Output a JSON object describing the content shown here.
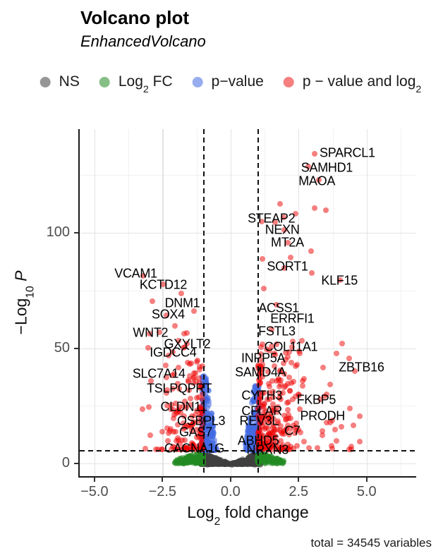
{
  "title": "Volcano plot",
  "subtitle": "EnhancedVolcano",
  "caption": "total = 34545 variables",
  "legend": {
    "items": [
      {
        "pre": "NS",
        "sub": "",
        "post": "",
        "color": "rgba(64,64,64,0.55)"
      },
      {
        "pre": "Log",
        "sub": "2",
        "post": " FC",
        "color": "rgba(34,139,34,0.55)"
      },
      {
        "pre": "p−value",
        "sub": "",
        "post": "",
        "color": "rgba(65,105,225,0.55)"
      },
      {
        "pre": "p − value and log",
        "sub": "2",
        "post": "",
        "color": "rgba(238,0,0,0.5)"
      }
    ]
  },
  "chart_data": {
    "type": "scatter",
    "title": "Volcano plot",
    "subtitle": "EnhancedVolcano",
    "xlabel_parts": {
      "pre": "Log",
      "sub": "2",
      "post": " fold change"
    },
    "ylabel_parts": {
      "pre": "−Log",
      "sub": "10",
      "post": " ",
      "post_italic": "P"
    },
    "xlim": [
      -5.54,
      6.82
    ],
    "ylim": [
      -5.5,
      145
    ],
    "x_ticks": [
      {
        "v": -5.0,
        "label": "−5.0"
      },
      {
        "v": -2.5,
        "label": "−2.5"
      },
      {
        "v": 0.0,
        "label": "0.0"
      },
      {
        "v": 2.5,
        "label": "2.5"
      },
      {
        "v": 5.0,
        "label": "5.0"
      }
    ],
    "y_ticks": [
      {
        "v": 0,
        "label": "0"
      },
      {
        "v": 50,
        "label": "50"
      },
      {
        "v": 100,
        "label": "100"
      }
    ],
    "x_minor": [
      -3.75,
      -1.25,
      1.25,
      3.75,
      6.25
    ],
    "y_minor": [
      25,
      75,
      125
    ],
    "grid": true,
    "legend_position": "top",
    "fc_cutoffs": [
      -1,
      1
    ],
    "p_cutoff_neglog10": 5.8,
    "colors": {
      "ns": "rgba(64,64,64,0.55)",
      "fc": "rgba(34,139,34,0.55)",
      "p": "rgba(65,105,225,0.55)",
      "both": "rgba(238,0,0,0.5)"
    },
    "labeled_genes": [
      {
        "gene": "SPARCL1",
        "x": 4.29,
        "y": 134.6
      },
      {
        "gene": "SAMHD1",
        "x": 3.54,
        "y": 128.1
      },
      {
        "gene": "MAOA",
        "x": 3.17,
        "y": 122.3
      },
      {
        "gene": "STEAP2",
        "x": 1.5,
        "y": 106.1
      },
      {
        "gene": "NEXN",
        "x": 1.9,
        "y": 101.2
      },
      {
        "gene": "MT2A",
        "x": 2.09,
        "y": 95.7
      },
      {
        "gene": "SORT1",
        "x": 2.09,
        "y": 85.3
      },
      {
        "gene": "KLF15",
        "x": 4.0,
        "y": 79.2
      },
      {
        "gene": "VCAM1",
        "x": -3.48,
        "y": 82.3
      },
      {
        "gene": "KCTD12",
        "x": -2.47,
        "y": 77.4
      },
      {
        "gene": "DNM1",
        "x": -1.77,
        "y": 69.4
      },
      {
        "gene": "SOX4",
        "x": -2.29,
        "y": 64.5
      },
      {
        "gene": "WNT2",
        "x": -2.94,
        "y": 56.6
      },
      {
        "gene": "GXYLT2",
        "x": -1.59,
        "y": 51.7
      },
      {
        "gene": "IGDCC4",
        "x": -2.11,
        "y": 48.0
      },
      {
        "gene": "SLC7A14",
        "x": -2.63,
        "y": 38.8
      },
      {
        "gene": "TSLPQPRT",
        "x": -1.88,
        "y": 32.4
      },
      {
        "gene": "CLDN11",
        "x": -1.72,
        "y": 24.5
      },
      {
        "gene": "OSBPL3",
        "x": -1.08,
        "y": 18.3
      },
      {
        "gene": "GAS7",
        "x": -1.28,
        "y": 13.5
      },
      {
        "gene": "CACNA1G",
        "x": -1.33,
        "y": 6.4
      },
      {
        "gene": "ACSS1",
        "x": 1.77,
        "y": 67.3
      },
      {
        "gene": "ERRFI1",
        "x": 2.27,
        "y": 62.7
      },
      {
        "gene": "FSTL3",
        "x": 1.7,
        "y": 57.2
      },
      {
        "gene": "COL11A1",
        "x": 2.22,
        "y": 50.5
      },
      {
        "gene": "INPP5A",
        "x": 1.2,
        "y": 45.6
      },
      {
        "gene": "SAMD4A",
        "x": 1.1,
        "y": 39.4
      },
      {
        "gene": "ZBTB16",
        "x": 4.81,
        "y": 41.6
      },
      {
        "gene": "CYTH3",
        "x": 1.15,
        "y": 29.4
      },
      {
        "gene": "FKBP5",
        "x": 3.15,
        "y": 27.5
      },
      {
        "gene": "CFLAR",
        "x": 1.15,
        "y": 22.6
      },
      {
        "gene": "PRODH",
        "x": 3.38,
        "y": 20.5
      },
      {
        "gene": "REV3L",
        "x": 1.05,
        "y": 18.3
      },
      {
        "gene": "C7",
        "x": 2.27,
        "y": 14.1
      },
      {
        "gene": "ABHD5",
        "x": 1.02,
        "y": 9.8
      },
      {
        "gene": "NRXN3",
        "x": 1.36,
        "y": 5.8
      }
    ],
    "highlight_points": [
      [
        3.09,
        134.3
      ],
      [
        2.86,
        128.7
      ],
      [
        3.25,
        123.0
      ],
      [
        3.5,
        109.8
      ],
      [
        1.95,
        106.7
      ],
      [
        1.97,
        101.4
      ],
      [
        2.1,
        95.9
      ],
      [
        2.2,
        89.3
      ],
      [
        2.99,
        82.6
      ],
      [
        4.03,
        79.4
      ],
      [
        -3.2,
        81.5
      ],
      [
        -2.47,
        77.6
      ],
      [
        -2.86,
        70.3
      ],
      [
        -1.82,
        73.7
      ],
      [
        -2.35,
        64.3
      ],
      [
        -2.62,
        56.8
      ],
      [
        -1.61,
        51.9
      ],
      [
        -2.13,
        48.3
      ],
      [
        -1.35,
        37.3
      ],
      [
        3.9,
        47.7
      ],
      [
        4.75,
        20.5
      ],
      [
        3.3,
        27.8
      ],
      [
        2.42,
        14.5
      ]
    ],
    "point_cloud": {
      "seed": 20,
      "dot_size": 8,
      "components": [
        {
          "kind": "volcano_core",
          "color": "ns",
          "n": 750,
          "xmax": 1.12,
          "pcut": 5.8
        },
        {
          "kind": "skirt",
          "color": "fc",
          "n": 140,
          "side": -1,
          "x0": 1.0,
          "x1": 2.1,
          "pmax": 5.6
        },
        {
          "kind": "skirt",
          "color": "fc",
          "n": 120,
          "side": 1,
          "x0": 1.0,
          "x1": 1.95,
          "pmax": 5.6
        },
        {
          "kind": "wedge",
          "color": "p",
          "n": 240,
          "side": -1,
          "edge": 1.05,
          "width": 0.5,
          "p0": 5.8,
          "p1": 38
        },
        {
          "kind": "wedge",
          "color": "p",
          "n": 240,
          "side": 1,
          "edge": 1.05,
          "width": 0.5,
          "p0": 5.8,
          "p1": 34
        },
        {
          "kind": "column",
          "color": "both",
          "n": 130,
          "side": -1,
          "x0": 1.02,
          "spread": 1.35,
          "xpow": 1.7,
          "p0": 6,
          "p1": 44,
          "ppow": 2.0
        },
        {
          "kind": "column",
          "color": "both",
          "n": 35,
          "side": -1,
          "x0": 1.05,
          "spread": 2.5,
          "xpow": 1.6,
          "p0": 6,
          "p1": 58,
          "ppow": 2.2
        },
        {
          "kind": "column",
          "color": "both",
          "n": 210,
          "side": 1,
          "x0": 1.02,
          "spread": 1.55,
          "xpow": 1.8,
          "p0": 6,
          "p1": 52,
          "ppow": 2.0
        },
        {
          "kind": "column",
          "color": "both",
          "n": 70,
          "side": 1,
          "x0": 1.05,
          "spread": 3.8,
          "xpow": 2.3,
          "p0": 6,
          "p1": 55,
          "ppow": 2.3
        },
        {
          "kind": "column",
          "color": "both",
          "n": 12,
          "side": 1,
          "x0": 1.1,
          "spread": 2.3,
          "xpow": 1.4,
          "p0": 52,
          "p1": 118,
          "ppow": 1.2
        },
        {
          "kind": "column",
          "color": "both",
          "n": 7,
          "side": -1,
          "x0": 1.15,
          "spread": 1.7,
          "xpow": 1.2,
          "p0": 40,
          "p1": 72,
          "ppow": 1.3
        }
      ]
    }
  }
}
